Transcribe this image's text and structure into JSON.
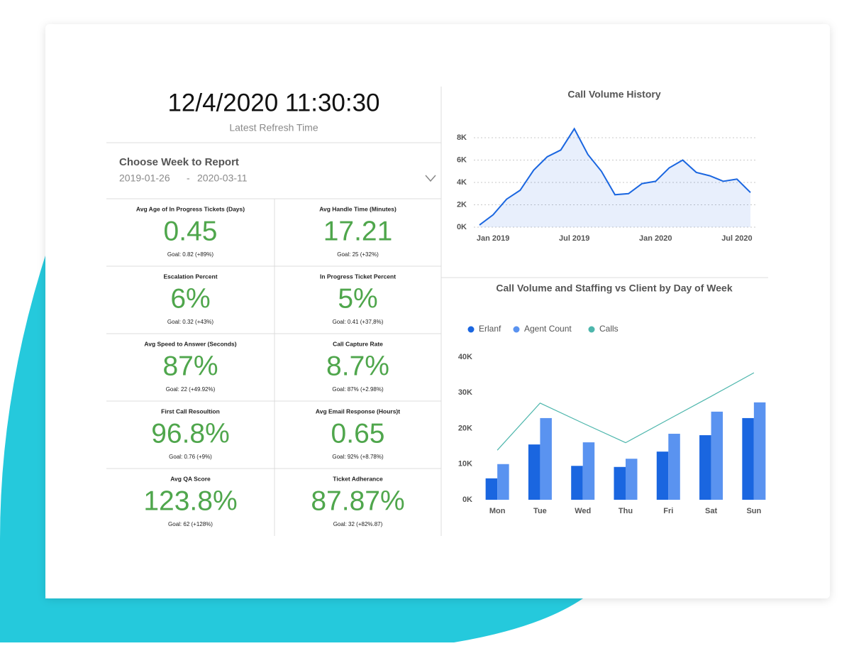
{
  "header": {
    "datetime": "12/4/2020 11:30:30",
    "subtitle": "Latest Refresh Time"
  },
  "week_picker": {
    "label": "Choose Week to Report",
    "start": "2019-01-26",
    "separator": "-",
    "end": "2020-03-11"
  },
  "kpis": [
    {
      "label": "Avg Age of In Progress Tickets (Days)",
      "value": "0.45",
      "goal": "Goal: 0.82 (+89%)"
    },
    {
      "label": "Avg Handle Time (Minutes)",
      "value": "17.21",
      "goal": "Goal: 25 (+32%)"
    },
    {
      "label": "Escalation Percent",
      "value": "6%",
      "goal": "Goal: 0.32 (+43%)"
    },
    {
      "label": "In Progress Ticket Percent",
      "value": "5%",
      "goal": "Goal: 0.41 (+37,8%)"
    },
    {
      "label": "Avg Speed to Answer (Seconds)",
      "value": "87%",
      "goal": "Goal: 22 (+49.92%)"
    },
    {
      "label": "Call Capture Rate",
      "value": "8.7%",
      "goal": "Goal: 87% (+2.98%)"
    },
    {
      "label": "First Call Resoultion",
      "value": "96.8%",
      "goal": "Goal: 0.76 (+9%)"
    },
    {
      "label": "Avg Email Response (Hours)t",
      "value": "0.65",
      "goal": "Goal: 92% (+8.78%)"
    },
    {
      "label": "Avg QA Score",
      "value": "123.8%",
      "goal": "Goal: 62 (+128%)"
    },
    {
      "label": "Ticket Adherance",
      "value": "87.87%",
      "goal": "Goal: 32 (+82%.87)"
    }
  ],
  "chart_data": [
    {
      "type": "line",
      "title": "Call Volume History",
      "x": [
        "2018-12",
        "2019-01",
        "2019-02",
        "2019-03",
        "2019-04",
        "2019-05",
        "2019-06",
        "2019-07",
        "2019-08",
        "2019-09",
        "2019-10",
        "2019-11",
        "2019-12",
        "2020-01",
        "2020-02",
        "2020-03",
        "2020-04",
        "2020-05",
        "2020-06",
        "2020-07",
        "2020-08"
      ],
      "series": [
        {
          "name": "Call Volume",
          "color": "#1a66e0",
          "values": [
            200,
            1100,
            2500,
            3300,
            5100,
            6300,
            6900,
            8800,
            6500,
            5000,
            2900,
            3000,
            3900,
            4100,
            5300,
            6000,
            4900,
            4600,
            4100,
            4300,
            3100
          ]
        }
      ],
      "xlim": [
        "2018-12",
        "2020-08"
      ],
      "xticks": [
        {
          "value": "2019-01",
          "label": "Jan 2019"
        },
        {
          "value": "2019-07",
          "label": "Jul 2019"
        },
        {
          "value": "2020-01",
          "label": "Jan 2020"
        },
        {
          "value": "2020-07",
          "label": "Jul 2020"
        }
      ],
      "ylim": [
        0,
        8000
      ],
      "yticks": [
        {
          "value": 0,
          "label": "0K"
        },
        {
          "value": 2000,
          "label": "2K"
        },
        {
          "value": 4000,
          "label": "4K"
        },
        {
          "value": 6000,
          "label": "6K"
        },
        {
          "value": 8000,
          "label": "8K"
        }
      ],
      "grid": true
    },
    {
      "type": "bar",
      "title": "Call Volume and Staffing vs Client by Day of Week",
      "categories": [
        "Mon",
        "Tue",
        "Wed",
        "Thu",
        "Fri",
        "Sat",
        "Sun"
      ],
      "series": [
        {
          "name": "Erlanf",
          "color": "#1a66e0",
          "values": [
            6000,
            15500,
            9500,
            9200,
            13500,
            18100,
            22900
          ]
        },
        {
          "name": "Agent Count",
          "color": "#5a93f0",
          "values": [
            10000,
            22900,
            16100,
            11500,
            18500,
            24700,
            27300
          ]
        },
        {
          "name": "Calls",
          "color": "#4db6ac",
          "type": "line",
          "values": [
            13900,
            27100,
            21500,
            16000,
            22500,
            29000,
            35600
          ]
        }
      ],
      "ylim": [
        0,
        40000
      ],
      "yticks": [
        {
          "value": 0,
          "label": "0K"
        },
        {
          "value": 10000,
          "label": "10K"
        },
        {
          "value": 20000,
          "label": "20K"
        },
        {
          "value": 30000,
          "label": "30K"
        },
        {
          "value": 40000,
          "label": "40K"
        }
      ],
      "grid": false,
      "legend": "top-left"
    }
  ]
}
